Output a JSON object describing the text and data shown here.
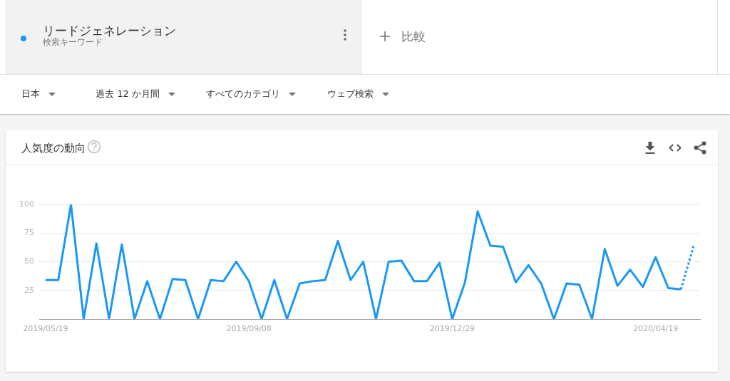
{
  "chart_data": {
    "type": "line",
    "title": "人気度の動向",
    "categories": [
      "2019/05/19",
      null,
      null,
      null,
      null,
      null,
      null,
      null,
      null,
      null,
      null,
      null,
      null,
      null,
      null,
      null,
      "2019/09/08",
      null,
      null,
      null,
      null,
      null,
      null,
      null,
      null,
      null,
      null,
      null,
      null,
      null,
      null,
      null,
      "2019/12/29",
      null,
      null,
      null,
      null,
      null,
      null,
      null,
      null,
      null,
      null,
      null,
      null,
      null,
      null,
      null,
      "2020/04/19",
      null,
      null,
      null
    ],
    "series": [
      {
        "name": "リードジェネレーション",
        "color": "#1a98f5",
        "values": [
          34,
          34,
          100,
          0,
          66,
          0,
          65,
          0,
          33,
          0,
          35,
          34,
          0,
          34,
          33,
          50,
          33,
          0,
          34,
          0,
          31,
          33,
          34,
          68,
          34,
          50,
          0,
          50,
          51,
          33,
          33,
          49,
          0,
          32,
          94,
          64,
          63,
          32,
          47,
          31,
          0,
          31,
          30,
          0,
          61,
          29,
          43,
          28,
          54,
          27,
          26,
          null
        ]
      },
      {
        "color": "#1a98f5",
        "line_style": "dotted",
        "values": [
          null,
          null,
          null,
          null,
          null,
          null,
          null,
          null,
          null,
          null,
          null,
          null,
          null,
          null,
          null,
          null,
          null,
          null,
          null,
          null,
          null,
          null,
          null,
          null,
          null,
          null,
          null,
          null,
          null,
          null,
          null,
          null,
          null,
          null,
          null,
          null,
          null,
          null,
          null,
          null,
          null,
          null,
          null,
          null,
          null,
          null,
          null,
          null,
          null,
          null,
          26,
          64
        ]
      }
    ],
    "ylim": [
      0,
      100
    ],
    "yticks": [
      {
        "value": 0,
        "label": null
      },
      25,
      50,
      75,
      100
    ],
    "grid": "y",
    "legend": "top left",
    "annotations": [
      "検索キーワード",
      "比較",
      "日本",
      "過去 12 か月間",
      "すべてのカテゴリ",
      "ウェブ検索"
    ]
  }
}
